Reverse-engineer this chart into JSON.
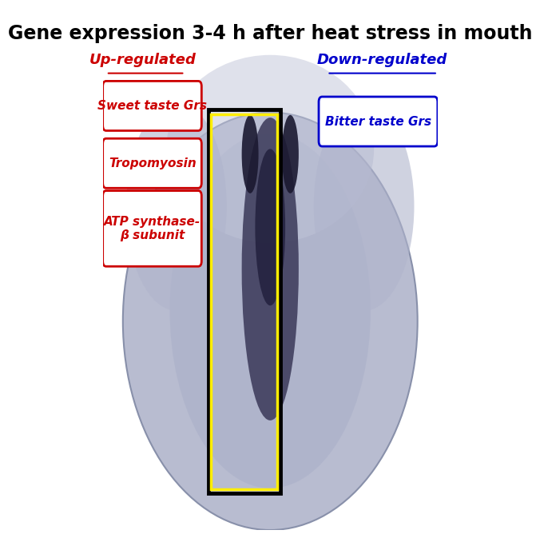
{
  "title": "Gene expression 3-4 h after heat stress in mouth",
  "title_fontsize": 17,
  "title_fontweight": "bold",
  "title_color": "#000000",
  "up_regulated_label": "Up-regulated",
  "down_regulated_label": "Down-regulated",
  "up_color": "#cc0000",
  "down_color": "#0000cc",
  "up_boxes": [
    "Sweet taste Grs",
    "Tropomyosin",
    "ATP synthase-\nβ subunit"
  ],
  "down_boxes": [
    "Bitter taste Grs"
  ],
  "box_edge_color": "#cc0000",
  "down_box_edge_color": "#0000cc",
  "box_text_color": "#cc0000",
  "down_box_text_color": "#0000cc",
  "background_color": "#ffffff",
  "image_bg_color": "#c8ccdd"
}
